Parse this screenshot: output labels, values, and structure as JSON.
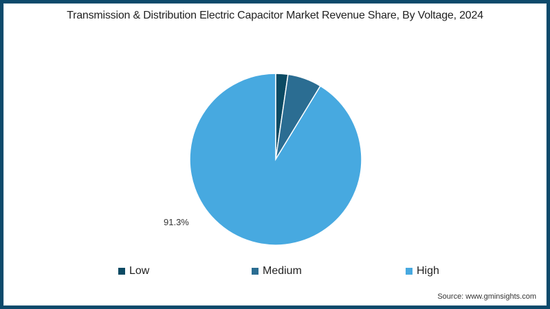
{
  "chart_data": {
    "type": "pie",
    "title": "Transmission & Distribution Electric Capacitor Market Revenue Share, By Voltage, 2024",
    "categories": [
      "Low",
      "Medium",
      "High"
    ],
    "values": [
      2.3,
      6.4,
      91.3
    ],
    "colors": [
      "#0b4a63",
      "#2b6d92",
      "#47a9e0"
    ],
    "annotations": [
      {
        "category": "High",
        "label": "91.3%"
      }
    ],
    "legend_position": "bottom",
    "start_angle_deg": 0,
    "direction": "clockwise"
  },
  "header": {
    "title": "Transmission & Distribution Electric Capacitor Market Revenue Share, By Voltage, 2024"
  },
  "pie": {
    "high_label": "91.3%"
  },
  "legend": {
    "items": [
      {
        "label": "Low",
        "color": "#0b4a63"
      },
      {
        "label": "Medium",
        "color": "#2b6d92"
      },
      {
        "label": "High",
        "color": "#47a9e0"
      }
    ]
  },
  "footer": {
    "source": "Source: www.gminsights.com"
  },
  "theme": {
    "border_color": "#0e4a6b",
    "background": "#ffffff"
  }
}
